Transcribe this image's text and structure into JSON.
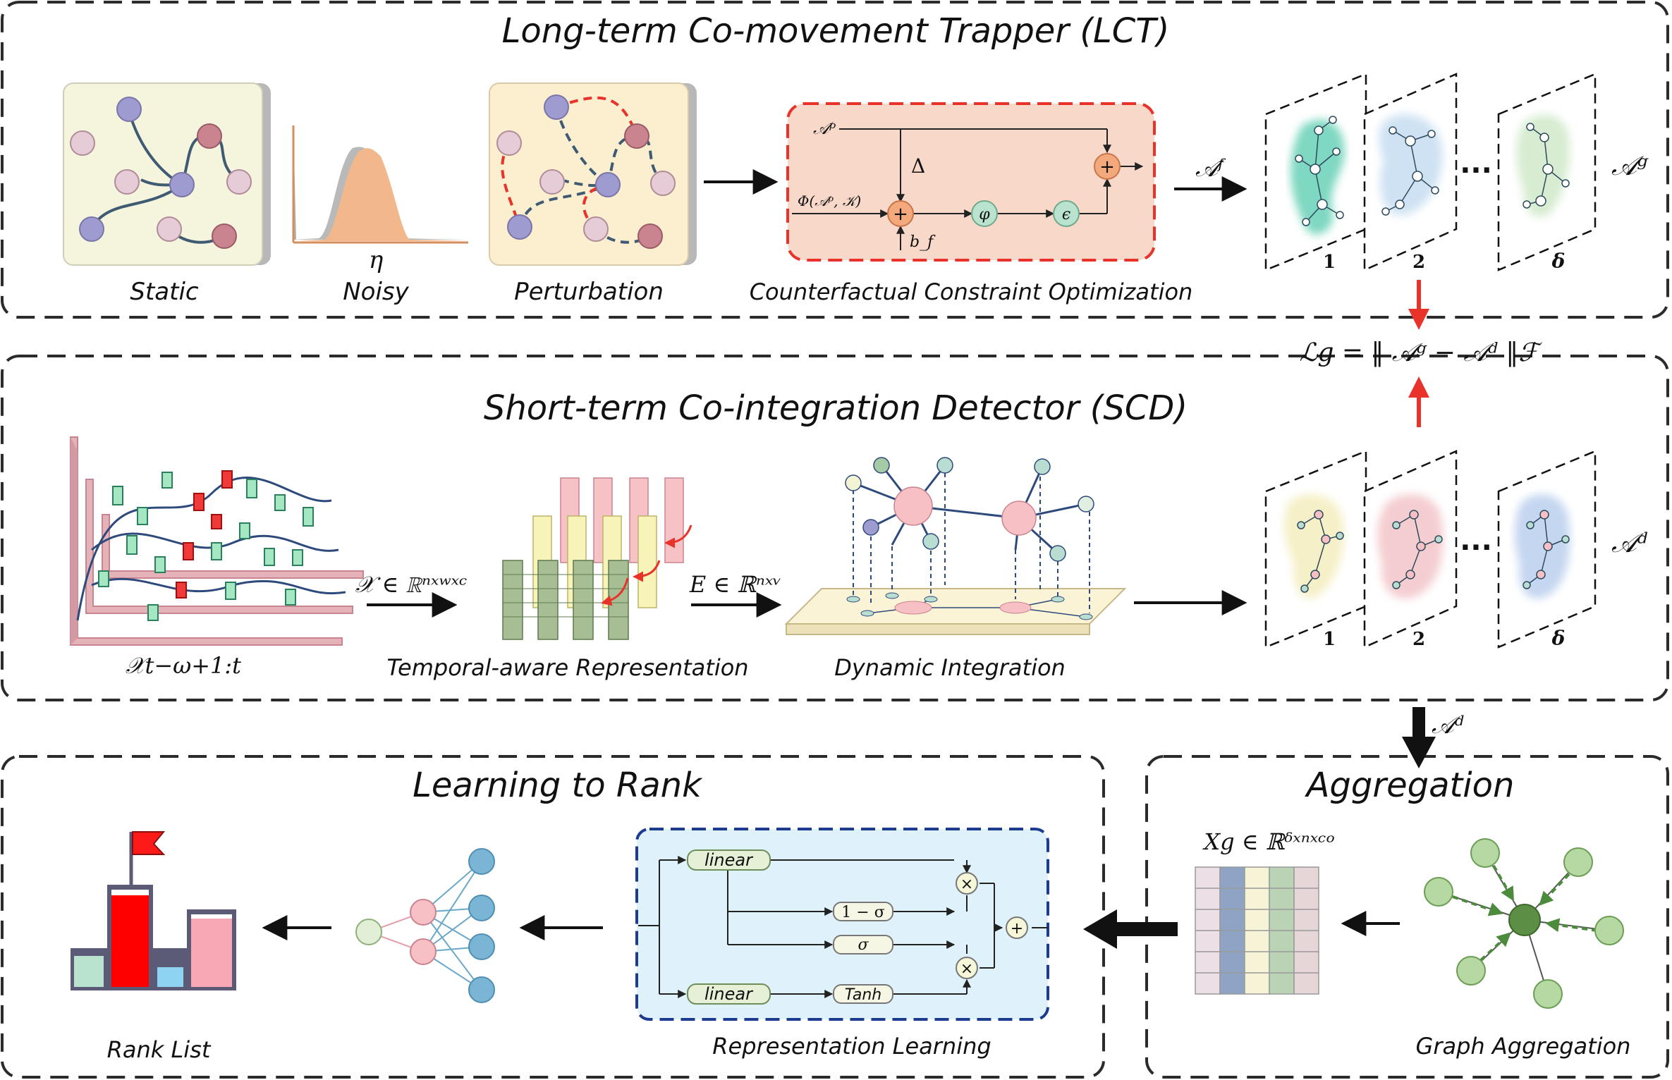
{
  "lct": {
    "title": "Long-term Co-movement Trapper (LCT)",
    "static_label": "Static",
    "noisy_label": "Noisy",
    "noisy_symbol": "η",
    "perturbation_label": "Perturbation",
    "cco_label": "Counterfactual Constraint Optimization",
    "cco": {
      "ap": "𝒜ᵖ",
      "delta": "Δ",
      "phi_input": "Φ(𝒜ᵖ, 𝒦)",
      "bias": "b_f",
      "plus": "+",
      "varphi": "φ",
      "epsilon": "ϵ"
    },
    "af_label": "𝒜ᶠ",
    "ag_label": "𝒜ᵍ",
    "graph_indices": [
      "1",
      "2",
      "δ"
    ],
    "ellipsis": "···"
  },
  "loss": "ℒg = ‖ 𝒜ᵍ − 𝒜ᵈ ‖ℱ",
  "scd": {
    "title": "Short-term Co-integration Detector (SCD)",
    "x_window": "𝒳t−ω+1:t",
    "x_space": "𝒳 ∈ ℝⁿˣʷˣᶜ",
    "e_space": "E ∈ ℝⁿˣᵛ",
    "temporal_label": "Temporal-aware Representation",
    "dynamic_label": "Dynamic Integration",
    "ad_label": "𝒜ᵈ",
    "graph_indices": [
      "1",
      "2",
      "δ"
    ],
    "ellipsis": "···"
  },
  "ad_down_label": "𝒜ᵈ",
  "ltr": {
    "title": "Learning to Rank",
    "rank_list_label": "Rank List",
    "rep_learning_label": "Representation Learning",
    "linear1": "linear",
    "linear2": "linear",
    "one_minus_sigma": "1 − σ",
    "sigma": "σ",
    "tanh": "Tanh",
    "times": "×",
    "plus": "+"
  },
  "agg": {
    "title": "Aggregation",
    "xg_space": "Xg ∈ ℝᵟˣⁿˣᶜᵒ",
    "graph_agg_label": "Graph Aggregation"
  },
  "colors": {
    "dash_border": "#2b2b2b",
    "cco_fill": "#f8d9c9",
    "cco_border": "#e8322a",
    "rep_fill": "#dff1fb",
    "rep_border": "#1d3c8f",
    "red_arrow": "#e8322a",
    "node_purple": "#9d9bd0",
    "node_pink": "#e6ccd6",
    "node_rose": "#c98490",
    "static_bg": "#f5f4dd",
    "pert_bg": "#fcefd0",
    "noisy_fill": "#f2b88c",
    "orange_op": "#f3a97c",
    "green_op": "#b9e3cf",
    "candle_green": "#a6e7c3",
    "candle_red": "#f03a3a",
    "agg_green": "#9ccb8e",
    "agg_center": "#5c8f45"
  }
}
